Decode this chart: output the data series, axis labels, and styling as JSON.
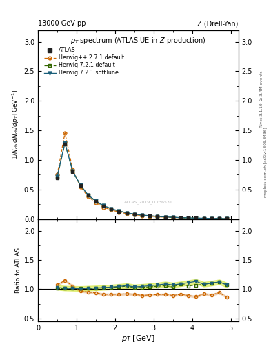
{
  "title_left": "13000 GeV pp",
  "title_right": "Z (Drell-Yan)",
  "plot_title": "p$_T$ spectrum (ATLAS UE in Z production)",
  "right_label1": "Rivet 3.1.10, ≥ 3.4M events",
  "right_label2": "mcplots.cern.ch [arXiv:1306.3436]",
  "watermark": "ATLAS_2019_I1736531",
  "xlim": [
    0.0,
    5.2
  ],
  "ylim_main": [
    0.0,
    3.2
  ],
  "ylim_ratio": [
    0.45,
    2.2
  ],
  "atlas_color": "#222222",
  "herwig_pp_color": "#cc6600",
  "herwig721_def_color": "#336600",
  "herwig721_soft_color": "#1a5f7a",
  "herwig721_soft_band_color": "#c8d870",
  "atlas_x": [
    0.5,
    0.7,
    0.9,
    1.1,
    1.3,
    1.5,
    1.7,
    1.9,
    2.1,
    2.3,
    2.5,
    2.7,
    2.9,
    3.1,
    3.3,
    3.5,
    3.7,
    3.9,
    4.1,
    4.3,
    4.5,
    4.7,
    4.9
  ],
  "atlas_y": [
    0.7,
    1.27,
    0.8,
    0.57,
    0.4,
    0.3,
    0.22,
    0.17,
    0.13,
    0.1,
    0.08,
    0.065,
    0.052,
    0.042,
    0.034,
    0.028,
    0.022,
    0.018,
    0.015,
    0.012,
    0.01,
    0.008,
    0.007
  ],
  "herwig_pp_x": [
    0.5,
    0.7,
    0.9,
    1.1,
    1.3,
    1.5,
    1.7,
    1.9,
    2.1,
    2.3,
    2.5,
    2.7,
    2.9,
    3.1,
    3.3,
    3.5,
    3.7,
    3.9,
    4.1,
    4.3,
    4.5,
    4.7,
    4.9
  ],
  "herwig_pp_y": [
    0.75,
    1.46,
    0.84,
    0.55,
    0.38,
    0.28,
    0.2,
    0.155,
    0.118,
    0.092,
    0.073,
    0.058,
    0.047,
    0.038,
    0.031,
    0.025,
    0.02,
    0.016,
    0.013,
    0.011,
    0.009,
    0.0075,
    0.006
  ],
  "herwig721_def_x": [
    0.5,
    0.7,
    0.9,
    1.1,
    1.3,
    1.5,
    1.7,
    1.9,
    2.1,
    2.3,
    2.5,
    2.7,
    2.9,
    3.1,
    3.3,
    3.5,
    3.7,
    3.9,
    4.1,
    4.3,
    4.5,
    4.7,
    4.9
  ],
  "herwig721_def_y": [
    0.71,
    1.28,
    0.81,
    0.575,
    0.405,
    0.305,
    0.225,
    0.175,
    0.135,
    0.105,
    0.082,
    0.067,
    0.054,
    0.044,
    0.036,
    0.029,
    0.024,
    0.019,
    0.016,
    0.013,
    0.011,
    0.009,
    0.0075
  ],
  "herwig721_soft_x": [
    0.5,
    0.7,
    0.9,
    1.1,
    1.3,
    1.5,
    1.7,
    1.9,
    2.1,
    2.3,
    2.5,
    2.7,
    2.9,
    3.1,
    3.3,
    3.5,
    3.7,
    3.9,
    4.1,
    4.3,
    4.5,
    4.7,
    4.9
  ],
  "herwig721_soft_y": [
    0.72,
    1.29,
    0.81,
    0.575,
    0.406,
    0.306,
    0.226,
    0.176,
    0.136,
    0.106,
    0.083,
    0.068,
    0.055,
    0.045,
    0.037,
    0.03,
    0.024,
    0.02,
    0.016,
    0.013,
    0.011,
    0.009,
    0.0075
  ],
  "ratio_herwig_pp": [
    1.07,
    1.15,
    1.05,
    0.965,
    0.95,
    0.935,
    0.91,
    0.91,
    0.91,
    0.92,
    0.91,
    0.89,
    0.9,
    0.905,
    0.91,
    0.89,
    0.91,
    0.89,
    0.87,
    0.92,
    0.9,
    0.94,
    0.86
  ],
  "ratio_herwig721_def": [
    1.01,
    1.01,
    1.01,
    1.01,
    1.013,
    1.017,
    1.023,
    1.03,
    1.038,
    1.05,
    1.025,
    1.031,
    1.038,
    1.048,
    1.059,
    1.036,
    1.09,
    1.056,
    1.067,
    1.083,
    1.1,
    1.125,
    1.07
  ],
  "ratio_herwig721_soft": [
    1.03,
    1.016,
    1.012,
    1.009,
    1.015,
    1.02,
    1.027,
    1.035,
    1.046,
    1.06,
    1.038,
    1.046,
    1.058,
    1.071,
    1.088,
    1.071,
    1.09,
    1.111,
    1.133,
    1.083,
    1.1,
    1.125,
    1.07
  ]
}
